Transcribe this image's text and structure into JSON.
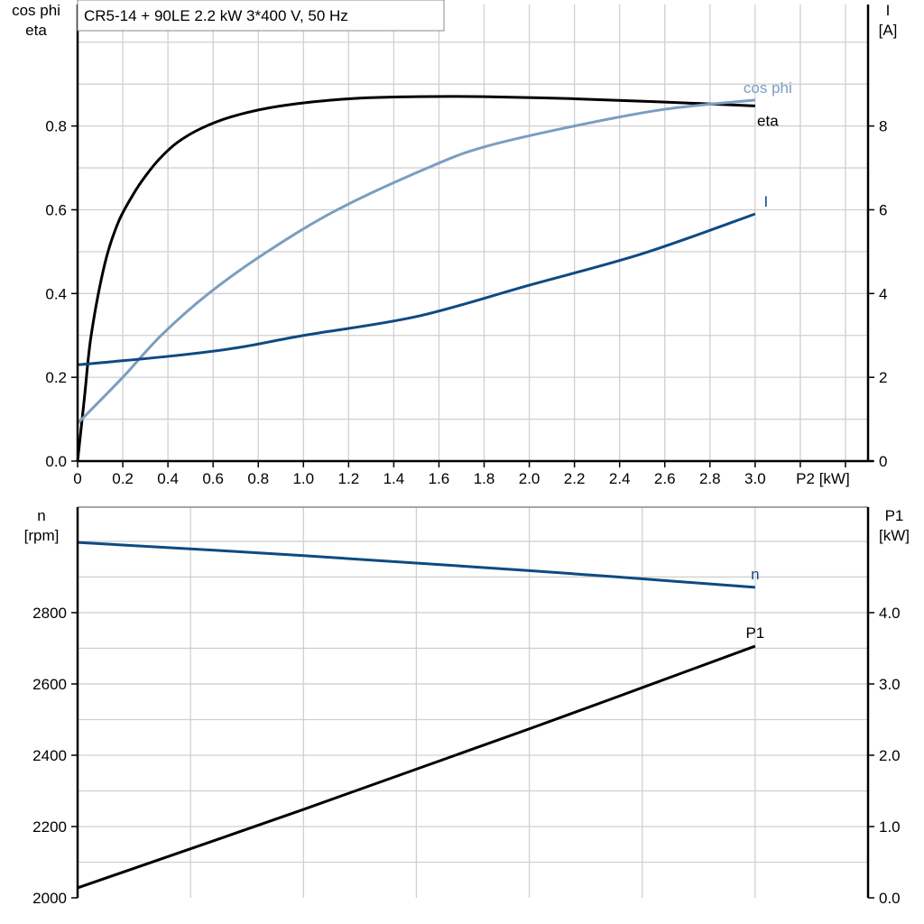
{
  "title": "CR5-14 + 90LE   2.2 kW   3*400 V, 50 Hz",
  "colors": {
    "eta": "#000000",
    "cos_phi": "#7a9ec0",
    "I": "#0e4a82",
    "n": "#0e4a82",
    "P1": "#000000",
    "grid": "#d0d0d0"
  },
  "chart_data": [
    {
      "type": "line",
      "title": "CR5-14 + 90LE   2.2 kW   3*400 V, 50 Hz",
      "xlabel": "P2 [kW]",
      "ylabel_left": [
        "cos phi",
        "eta"
      ],
      "ylabel_right": [
        "I",
        "[A]"
      ],
      "xlim": [
        0,
        3.5
      ],
      "ylim_left": [
        0,
        1.09
      ],
      "ylim_right": [
        0,
        10.9
      ],
      "x_ticks": [
        "0",
        "0.2",
        "0.4",
        "0.6",
        "0.8",
        "1.0",
        "1.2",
        "1.4",
        "1.6",
        "1.8",
        "2.0",
        "2.2",
        "2.4",
        "2.6",
        "2.8",
        "3.0",
        "",
        ""
      ],
      "y_ticks_left": [
        "0.0",
        "0.2",
        "0.4",
        "0.6",
        "0.8"
      ],
      "y_ticks_right": [
        "0",
        "2",
        "4",
        "6",
        "8"
      ],
      "grid": true,
      "series": [
        {
          "name": "eta",
          "axis": "left",
          "x": [
            0,
            0.03,
            0.06,
            0.12,
            0.18,
            0.25,
            0.3,
            0.36,
            0.44,
            0.55,
            0.7,
            0.9,
            1.2,
            1.5,
            1.8,
            2.2,
            2.6,
            3.0
          ],
          "y": [
            0,
            0.15,
            0.3,
            0.47,
            0.57,
            0.64,
            0.68,
            0.72,
            0.76,
            0.795,
            0.825,
            0.848,
            0.865,
            0.87,
            0.87,
            0.865,
            0.857,
            0.848
          ]
        },
        {
          "name": "cos phi",
          "axis": "left",
          "x": [
            0,
            0.2,
            0.37,
            0.58,
            0.84,
            1.15,
            1.55,
            1.8,
            2.2,
            2.6,
            3.0
          ],
          "y": [
            0.09,
            0.2,
            0.3,
            0.4,
            0.5,
            0.6,
            0.7,
            0.75,
            0.8,
            0.84,
            0.862
          ]
        },
        {
          "name": "I",
          "axis": "right",
          "x": [
            0,
            0.4,
            0.7,
            1.0,
            1.5,
            2.0,
            2.5,
            3.0
          ],
          "y": [
            2.3,
            2.5,
            2.7,
            3.0,
            3.45,
            4.2,
            4.95,
            5.9
          ]
        }
      ]
    },
    {
      "type": "line",
      "xlim": [
        0,
        3.5
      ],
      "ylabel_left": [
        "n",
        "[rpm]"
      ],
      "ylabel_right": [
        "P1",
        "[kW]"
      ],
      "ylim_left": [
        2000,
        3096
      ],
      "ylim_right": [
        0,
        5.48
      ],
      "y_ticks_left": [
        "2000",
        "2200",
        "2400",
        "2600",
        "2800"
      ],
      "y_ticks_right": [
        "0.0",
        "1.0",
        "2.0",
        "3.0",
        "4.0"
      ],
      "grid": true,
      "series": [
        {
          "name": "n",
          "axis": "left",
          "x": [
            0,
            1.0,
            2.0,
            3.0
          ],
          "y": [
            2997,
            2960,
            2918,
            2871
          ]
        },
        {
          "name": "P1",
          "axis": "right",
          "x": [
            0,
            1.0,
            2.0,
            3.0
          ],
          "y": [
            0.14,
            1.24,
            2.37,
            3.53
          ]
        }
      ]
    }
  ]
}
